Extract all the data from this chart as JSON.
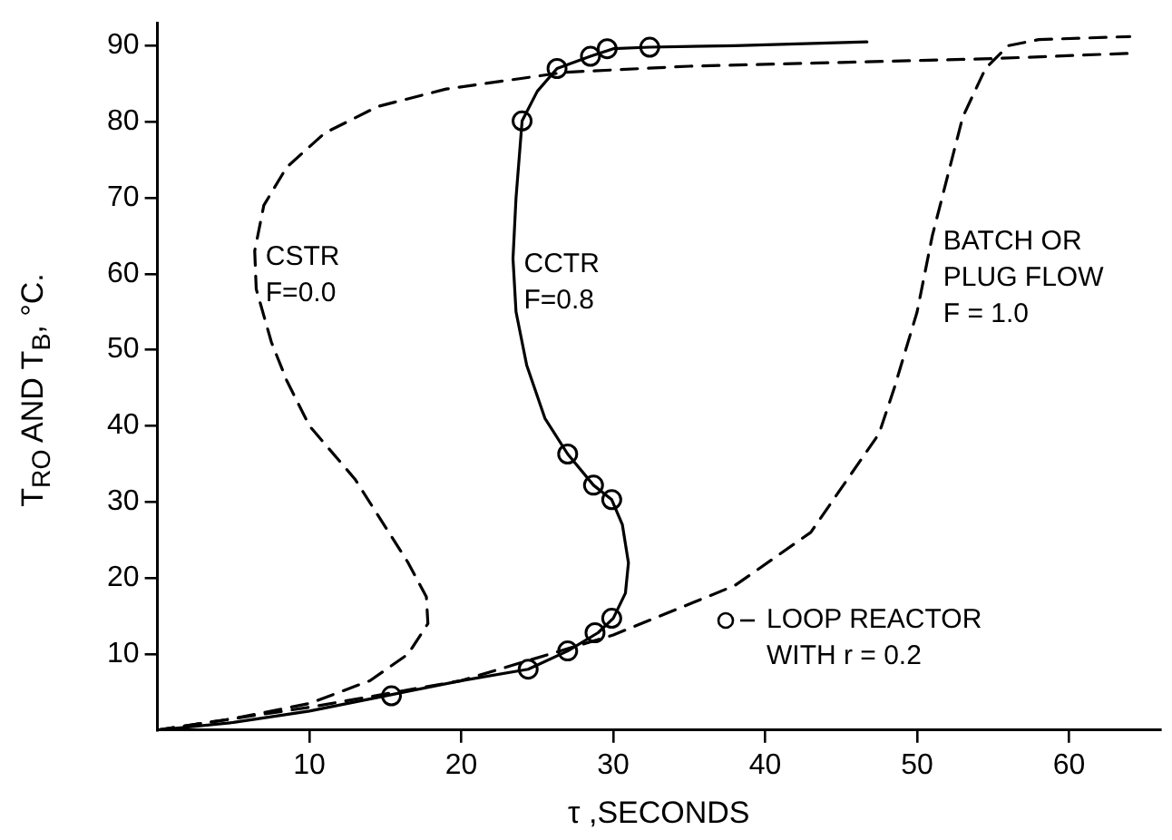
{
  "chart_data": {
    "type": "line",
    "xlabel": "τ ,SECONDS",
    "ylabel": "T$_{RO}$ AND T$_{B}$, °C.",
    "xlim": [
      0,
      66
    ],
    "ylim": [
      0,
      93
    ],
    "xticks": [
      10,
      20,
      30,
      40,
      50,
      60
    ],
    "yticks": [
      10,
      20,
      30,
      40,
      50,
      60,
      70,
      80,
      90
    ],
    "grid": false,
    "legend": "bottom right",
    "series": [
      {
        "type": "line",
        "color": "#000000",
        "line_style": "dashed",
        "marker": "none",
        "x": [
          0,
          5,
          10,
          14,
          16.5,
          17.8,
          17.7,
          16.5,
          13,
          10,
          8.5,
          7.5,
          6.5,
          6.4,
          7,
          8.5,
          11,
          14.5,
          19,
          26.8,
          35,
          45,
          55,
          64
        ],
        "values": [
          0,
          1.5,
          3.5,
          6.5,
          10,
          14,
          17.5,
          22,
          33,
          40,
          46,
          51,
          58,
          63,
          69,
          74,
          78.5,
          82,
          84.3,
          86.5,
          87.3,
          87.8,
          88.3,
          89
        ]
      },
      {
        "type": "line",
        "color": "#000000",
        "line_style": "solid",
        "marker": "none",
        "x": [
          0,
          5,
          10,
          15,
          20,
          24.4,
          27,
          29,
          30,
          30.8,
          31,
          30.6,
          29.9,
          28.7,
          27,
          25.5,
          24.3,
          23.6,
          23.4,
          23.6,
          24,
          25,
          26.3,
          28.5,
          30,
          32.4,
          38,
          46.7
        ],
        "values": [
          0,
          1,
          2.5,
          4.5,
          6.5,
          8,
          10.4,
          12.8,
          14.7,
          18,
          22,
          27,
          30.3,
          32.2,
          36.3,
          41,
          48,
          55,
          62,
          70,
          80.1,
          84,
          87,
          88.6,
          89.6,
          89.8,
          90,
          90.5
        ]
      },
      {
        "type": "line",
        "color": "#000000",
        "line_style": "dashed",
        "marker": "none",
        "x": [
          0,
          10,
          20,
          30,
          38,
          43,
          47.5,
          48.5,
          50,
          51,
          53,
          54.5,
          56,
          58,
          64
        ],
        "values": [
          0,
          3,
          6.5,
          12.5,
          19,
          26,
          39,
          45,
          55,
          65,
          80.6,
          87,
          90,
          90.8,
          91.2
        ]
      },
      {
        "type": "scatter",
        "name": "LOOP REACTOR WITH r = 0.2",
        "color": "#000000",
        "marker": "circle",
        "x": [
          15.4,
          24.4,
          27,
          28.8,
          29.9,
          29.9,
          28.7,
          27,
          24,
          26.3,
          28.5,
          29.6,
          32.4
        ],
        "values": [
          4.5,
          8,
          10.4,
          12.8,
          14.7,
          30.3,
          32.2,
          36.3,
          80.1,
          87,
          88.6,
          89.6,
          89.8
        ]
      }
    ],
    "annotations": [
      {
        "text": "CSTR\nF=0.0",
        "x": 6.4,
        "y": 63
      },
      {
        "text": "CCTR\nF=0.8",
        "x": 23.4,
        "y": 62
      },
      {
        "text": "BATCH OR\nPLUG FLOW\nF = 1.0",
        "x": 51,
        "y": 65
      }
    ]
  }
}
